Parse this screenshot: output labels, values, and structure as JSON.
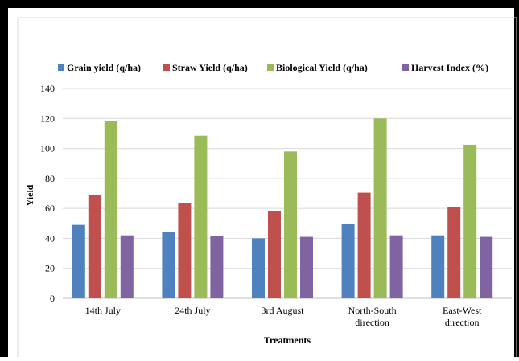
{
  "chart_data": {
    "type": "bar",
    "title": "",
    "xlabel": "Treatments",
    "ylabel": "Yield",
    "ylim": [
      0,
      140
    ],
    "yticks": [
      0,
      20,
      40,
      60,
      80,
      100,
      120,
      140
    ],
    "grid": true,
    "legend_position": "top",
    "categories": [
      [
        "14th July"
      ],
      [
        "24th July"
      ],
      [
        "3rd August"
      ],
      [
        "North-South",
        "direction"
      ],
      [
        "East-West",
        "direction"
      ]
    ],
    "series": [
      {
        "name": "Grain yield (q/ha)",
        "color": "#4e81bd",
        "values": [
          49,
          44.5,
          40,
          49.5,
          42
        ]
      },
      {
        "name": "Straw Yield (q/ha)",
        "color": "#c0504d",
        "values": [
          69,
          63.5,
          58,
          70.5,
          61
        ]
      },
      {
        "name": "Biological Yield (q/ha)",
        "color": "#9bbb59",
        "values": [
          118.5,
          108.5,
          98,
          120,
          102.5
        ]
      },
      {
        "name": "Harvest Index (%)",
        "color": "#8064a2",
        "values": [
          42,
          41.5,
          41,
          42,
          41
        ]
      }
    ]
  }
}
